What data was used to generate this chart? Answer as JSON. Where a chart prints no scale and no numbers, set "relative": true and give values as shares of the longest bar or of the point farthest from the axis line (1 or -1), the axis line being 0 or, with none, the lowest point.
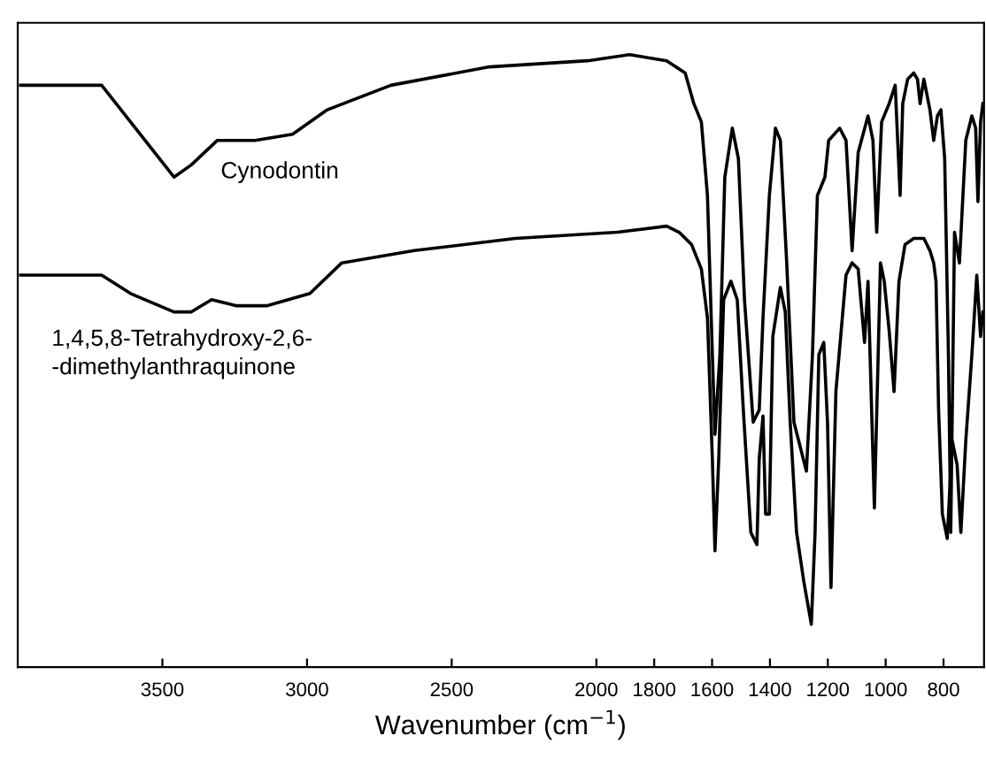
{
  "chart_data": {
    "type": "line",
    "relative": true,
    "xlabel": "Wavenumber (cm$^{−1}$)",
    "xlim": [
      4000,
      660
    ],
    "xticks": [
      3500,
      3000,
      2500,
      2000,
      1800,
      1600,
      1400,
      1200,
      1000,
      800
    ],
    "series": [
      {
        "name": "Cynodontin",
        "color": "#000000",
        "x": [
          3990,
          3710,
          3610,
          3460,
          3400,
          3310,
          3180,
          3050,
          2930,
          2710,
          2370,
          2030,
          1885,
          1757,
          1693,
          1663,
          1637,
          1616,
          1599,
          1590,
          1573,
          1556,
          1530,
          1509,
          1488,
          1458,
          1437,
          1424,
          1402,
          1381,
          1364,
          1342,
          1317,
          1274,
          1253,
          1236,
          1210,
          1197,
          1159,
          1137,
          1116,
          1095,
          1061,
          1044,
          1031,
          1014,
          988,
          967,
          950,
          941,
          924,
          903,
          890,
          881,
          868,
          847,
          834,
          821,
          809,
          796,
          783,
          775,
          762,
          745,
          723,
          702,
          689,
          681,
          672,
          664
        ],
        "values": [
          0.95,
          0.95,
          0.89,
          0.8,
          0.82,
          0.86,
          0.86,
          0.87,
          0.91,
          0.95,
          0.98,
          0.99,
          1.0,
          0.99,
          0.97,
          0.92,
          0.89,
          0.77,
          0.51,
          0.38,
          0.51,
          0.8,
          0.88,
          0.83,
          0.6,
          0.4,
          0.42,
          0.57,
          0.77,
          0.88,
          0.86,
          0.66,
          0.4,
          0.32,
          0.51,
          0.77,
          0.8,
          0.86,
          0.88,
          0.86,
          0.68,
          0.84,
          0.9,
          0.86,
          0.71,
          0.89,
          0.92,
          0.95,
          0.77,
          0.92,
          0.96,
          0.97,
          0.96,
          0.92,
          0.96,
          0.91,
          0.86,
          0.9,
          0.91,
          0.83,
          0.51,
          0.22,
          0.71,
          0.66,
          0.86,
          0.9,
          0.88,
          0.76,
          0.89,
          0.92
        ]
      },
      {
        "name": "1,4,5,8-Tetrahydroxy-2,6-\n-dimethylanthraquinone",
        "color": "#000000",
        "x": [
          3990,
          3710,
          3610,
          3460,
          3400,
          3330,
          3243,
          3140,
          2990,
          2880,
          2630,
          2280,
          1927,
          1757,
          1714,
          1671,
          1637,
          1616,
          1599,
          1590,
          1577,
          1560,
          1535,
          1513,
          1492,
          1466,
          1445,
          1437,
          1424,
          1415,
          1402,
          1390,
          1364,
          1347,
          1330,
          1308,
          1283,
          1257,
          1244,
          1231,
          1214,
          1201,
          1189,
          1172,
          1137,
          1116,
          1095,
          1073,
          1061,
          1039,
          1018,
          1005,
          988,
          971,
          954,
          933,
          903,
          868,
          847,
          834,
          826,
          817,
          804,
          787,
          770,
          753,
          740,
          723,
          702,
          685,
          672,
          664
        ],
        "values": [
          0.64,
          0.64,
          0.61,
          0.58,
          0.58,
          0.6,
          0.59,
          0.59,
          0.61,
          0.66,
          0.68,
          0.7,
          0.71,
          0.72,
          0.71,
          0.69,
          0.65,
          0.57,
          0.34,
          0.19,
          0.34,
          0.6,
          0.63,
          0.6,
          0.42,
          0.22,
          0.2,
          0.34,
          0.41,
          0.25,
          0.25,
          0.54,
          0.62,
          0.58,
          0.4,
          0.22,
          0.14,
          0.07,
          0.22,
          0.51,
          0.53,
          0.4,
          0.13,
          0.45,
          0.64,
          0.66,
          0.65,
          0.53,
          0.63,
          0.26,
          0.66,
          0.63,
          0.55,
          0.45,
          0.63,
          0.69,
          0.7,
          0.7,
          0.68,
          0.66,
          0.63,
          0.42,
          0.25,
          0.21,
          0.37,
          0.33,
          0.22,
          0.37,
          0.51,
          0.64,
          0.54,
          0.58
        ]
      }
    ]
  }
}
